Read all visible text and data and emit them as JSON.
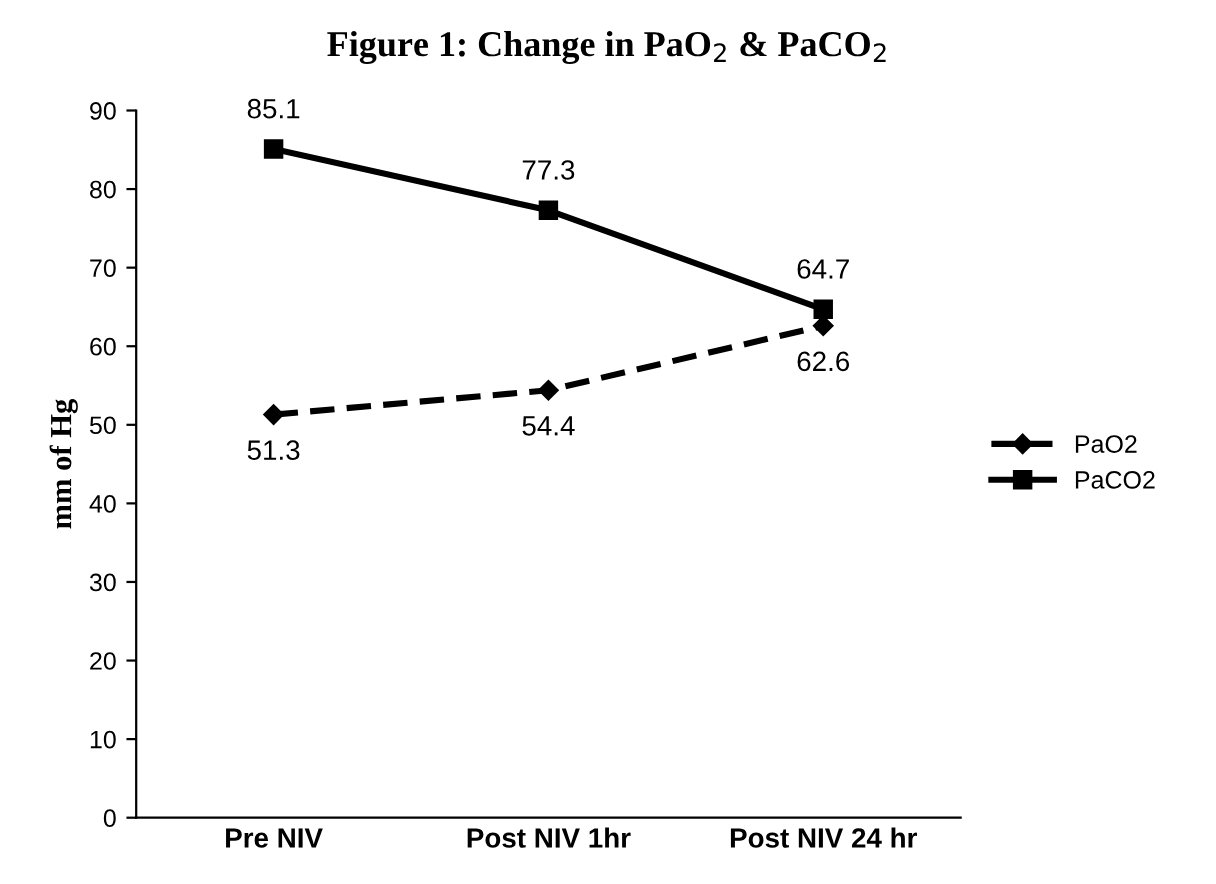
{
  "chart_data": {
    "type": "line",
    "title": "Figure 1: Change in PaO$_{2}$ & PaCO$_{2}$",
    "ylabel": "mm of Hg",
    "categories": [
      "Pre NIV",
      "Post NIV 1hr",
      "Post NIV 24 hr"
    ],
    "series": [
      {
        "name": "PaO2",
        "color": "#000000",
        "values": [
          51.3,
          54.4,
          62.6
        ],
        "marker": "diamond",
        "line_style": "dashed"
      },
      {
        "name": "PaCO2",
        "color": "#000000",
        "values": [
          85.1,
          77.3,
          64.7
        ],
        "marker": "square",
        "line_style": "solid"
      }
    ],
    "ylim": [
      0,
      90
    ],
    "yticks": [
      0,
      10,
      20,
      30,
      40,
      50,
      60,
      70,
      80,
      90
    ],
    "grid": false,
    "legend": "right",
    "data_labels": true
  }
}
